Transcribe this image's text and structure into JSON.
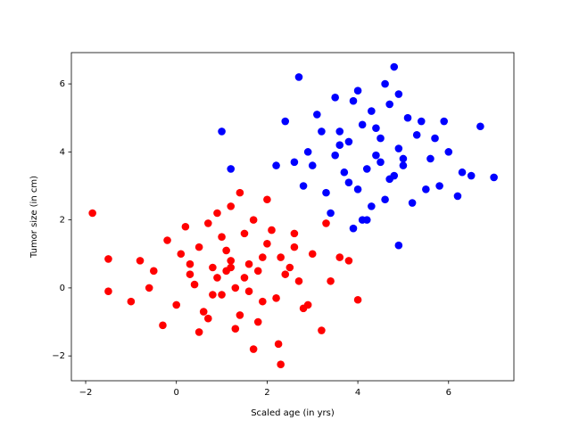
{
  "chart_data": {
    "type": "scatter",
    "x_label": "Scaled age (in yrs)",
    "y_label": "Tumor size (in cm)",
    "xlim": [
      -2.315,
      7.44
    ],
    "ylim": [
      -2.73,
      6.92
    ],
    "xticks": [
      {
        "value": -2,
        "label": "−2"
      },
      0,
      2,
      4,
      6
    ],
    "yticks": [
      {
        "value": -2,
        "label": "−2"
      },
      0,
      2,
      4,
      6
    ],
    "series": [
      {
        "color": "#0000ff",
        "x": [
          4.4,
          3.8,
          5.0,
          4.1,
          4.7,
          3.5,
          5.3,
          4.0,
          4.9,
          3.2,
          5.6,
          4.3,
          3.7,
          4.6,
          5.1,
          2.9,
          4.2,
          5.8,
          3.9,
          4.5,
          3.3,
          5.4,
          4.8,
          3.6,
          6.0,
          4.0,
          2.6,
          5.2,
          4.4,
          3.0,
          6.3,
          4.7,
          3.4,
          5.0,
          4.1,
          2.4,
          5.7,
          3.8,
          4.6,
          6.5,
          3.1,
          4.3,
          5.5,
          2.8,
          4.9,
          3.6,
          1.0,
          1.2,
          4.8,
          7.0,
          6.7,
          2.7,
          3.9,
          4.9,
          5.9,
          3.5,
          4.2,
          2.2,
          6.2,
          4.5
        ],
        "values": [
          3.9,
          4.3,
          3.6,
          4.8,
          3.2,
          3.9,
          4.5,
          2.9,
          4.1,
          4.6,
          3.8,
          5.2,
          3.4,
          2.6,
          5.0,
          4.0,
          3.5,
          3.0,
          5.5,
          4.4,
          2.8,
          4.9,
          3.3,
          4.2,
          4.0,
          5.8,
          3.7,
          2.5,
          4.7,
          3.6,
          3.4,
          5.4,
          2.2,
          3.8,
          2.0,
          4.9,
          4.4,
          3.1,
          6.0,
          3.3,
          5.1,
          2.4,
          2.9,
          3.0,
          5.7,
          4.6,
          4.6,
          3.5,
          6.5,
          3.25,
          4.75,
          6.2,
          1.75,
          1.25,
          4.9,
          5.6,
          2.0,
          3.6,
          2.7,
          3.7
        ]
      },
      {
        "color": "#ff0000",
        "x": [
          1.2,
          0.5,
          1.8,
          2.3,
          0.9,
          1.5,
          0.1,
          2.7,
          1.0,
          1.6,
          0.3,
          2.0,
          1.3,
          0.7,
          1.9,
          2.5,
          -0.2,
          1.1,
          1.4,
          0.8,
          2.2,
          0.4,
          1.7,
          3.0,
          -0.5,
          1.2,
          2.8,
          0.6,
          1.5,
          2.1,
          -0.8,
          0.0,
          3.4,
          1.0,
          1.8,
          2.4,
          0.2,
          1.3,
          3.6,
          -1.0,
          0.9,
          1.6,
          2.6,
          -0.3,
          1.1,
          3.8,
          0.5,
          2.0,
          -1.85,
          -1.5,
          -1.5,
          2.3,
          3.2,
          4.0,
          2.25,
          1.7,
          1.4,
          0.8,
          1.9,
          2.9,
          0.3,
          -0.6,
          3.3,
          1.2,
          2.6,
          0.7
        ],
        "values": [
          0.8,
          1.2,
          0.5,
          0.9,
          0.3,
          1.6,
          1.0,
          0.2,
          -0.2,
          0.7,
          0.4,
          1.3,
          0.0,
          1.9,
          -0.4,
          0.6,
          1.4,
          1.1,
          -0.8,
          0.6,
          -0.3,
          0.1,
          2.0,
          1.0,
          0.5,
          2.4,
          -0.6,
          -0.7,
          0.3,
          1.7,
          0.8,
          -0.5,
          0.2,
          1.5,
          -1.0,
          0.4,
          1.8,
          -1.2,
          0.9,
          -0.4,
          2.2,
          -0.1,
          1.2,
          -1.1,
          0.5,
          0.8,
          -1.3,
          2.6,
          2.2,
          0.85,
          -0.1,
          -2.25,
          -1.25,
          -0.35,
          -1.65,
          -1.8,
          2.8,
          -0.2,
          0.9,
          -0.5,
          0.7,
          0.0,
          1.9,
          0.6,
          1.6,
          -0.9
        ]
      }
    ]
  }
}
